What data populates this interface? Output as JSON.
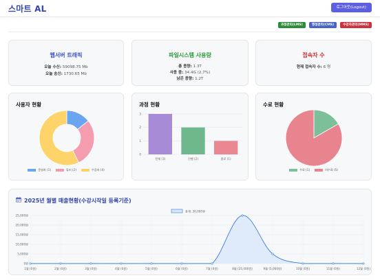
{
  "header": {
    "logo": "스마트 AL",
    "logout_label": "로그아웃(Logout)"
  },
  "nav_pills": [
    {
      "label": "과정관리(LMS)",
      "color": "#2e8b3c"
    },
    {
      "label": "행정관리(CMS)",
      "color": "#4a63c9"
    },
    {
      "label": "수강자관리(MMS)",
      "color": "#c9343f"
    }
  ],
  "stats": {
    "traffic": {
      "title": "웹서버 트래픽",
      "title_color": "#3a55c8",
      "in_label": "오늘 수신:",
      "in_value": "59098.75 Mb",
      "out_label": "오늘 송신:",
      "out_value": "1730.65 Mb"
    },
    "filesystem": {
      "title": "파일시스템 사용량",
      "title_color": "#2a9a3a",
      "total_label": "총 용량:",
      "total_value": "1.3T",
      "used_label": "사용 중:",
      "used_value": "34.4G (2.7%)",
      "free_label": "남은 용량:",
      "free_value": "1.2T"
    },
    "connections": {
      "title": "접속자 수",
      "title_color": "#d42a2a",
      "current_label": "현재 접속자 수:",
      "current_value": "6 명"
    }
  },
  "users_chart": {
    "title": "사용자 현황",
    "chart_data": {
      "type": "pie",
      "donut": true,
      "labels": [
        "운영자 (1)",
        "튜터 (2)",
        "수강자 (4)"
      ],
      "values": [
        1,
        2,
        4
      ],
      "colors": [
        "#6aa6f0",
        "#f59cae",
        "#fdd36a"
      ],
      "legend": "bottom"
    }
  },
  "course_chart": {
    "title": "과정 현황",
    "chart_data": {
      "type": "bar",
      "categories": [
        "전체 (3)",
        "진행 (2)",
        "종료 (1)"
      ],
      "values": [
        3,
        2,
        1
      ],
      "colors": [
        "#a78bd6",
        "#6fb88e",
        "#ea8791"
      ],
      "ylim": [
        0,
        3
      ],
      "yticks": [
        "0",
        "1",
        "2",
        "3"
      ],
      "grid": true
    }
  },
  "completion_chart": {
    "title": "수료 현황",
    "chart_data": {
      "type": "pie",
      "labels": [
        "수료 (1)",
        "미수료 (5)"
      ],
      "values": [
        1,
        5
      ],
      "colors": [
        "#7cbf99",
        "#e8848e"
      ],
      "legend": "bottom"
    }
  },
  "revenue_chart": {
    "title": "2025년 월별 매출현황(수강시작일 등록기준)",
    "chart_data": {
      "type": "area",
      "legend_label": "총계: 30,000원",
      "categories": [
        "1월 (0원)",
        "2월 (0원)",
        "3월 (0원)",
        "4월 (0원)",
        "5월 (0원)",
        "6월 (0원)",
        "7월 (0원)",
        "8월 (25,000원)",
        "9월 (5,000원)",
        "10월 (0원)",
        "11월 (0원)",
        "12월 (0원)"
      ],
      "values": [
        0,
        0,
        0,
        0,
        0,
        0,
        0,
        25000,
        5000,
        0,
        0,
        0
      ],
      "ylim": [
        0,
        25000
      ],
      "yticks": [
        "0원",
        "5,000원",
        "10,000원",
        "15,000원",
        "20,000원",
        "25,000원"
      ],
      "line_color": "#3a7ee0",
      "fill_color": "#d8e6fa",
      "grid": true
    }
  }
}
